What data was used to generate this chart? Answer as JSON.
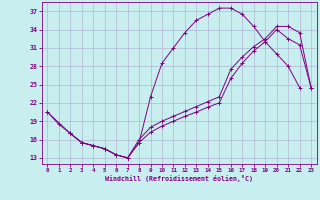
{
  "xlabel": "Windchill (Refroidissement éolien,°C)",
  "xlim": [
    -0.5,
    23.5
  ],
  "ylim": [
    12,
    38.5
  ],
  "xticks": [
    0,
    1,
    2,
    3,
    4,
    5,
    6,
    7,
    8,
    9,
    10,
    11,
    12,
    13,
    14,
    15,
    16,
    17,
    18,
    19,
    20,
    21,
    22,
    23
  ],
  "yticks": [
    13,
    16,
    19,
    22,
    25,
    28,
    31,
    34,
    37
  ],
  "background_color": "#c8eef0",
  "grid_color": "#aaaacc",
  "line_color": "#800080",
  "line1_x": [
    0,
    1,
    2,
    3,
    4,
    5,
    6,
    7,
    8,
    9,
    10,
    11,
    12,
    13,
    14,
    15,
    16,
    17,
    18,
    19,
    20,
    21,
    22
  ],
  "line1_y": [
    20.5,
    18.5,
    17.0,
    15.5,
    15.0,
    14.5,
    13.5,
    13.0,
    15.5,
    23.0,
    28.5,
    31.0,
    33.5,
    35.5,
    36.5,
    37.5,
    37.5,
    36.5,
    34.5,
    32.0,
    30.0,
    28.0,
    24.5
  ],
  "line2_x": [
    0,
    2,
    3,
    4,
    5,
    6,
    7,
    8,
    9,
    10,
    11,
    12,
    13,
    14,
    15,
    16,
    17,
    18,
    19,
    20,
    21,
    22,
    23
  ],
  "line2_y": [
    20.5,
    17.0,
    15.5,
    15.0,
    14.5,
    13.5,
    13.0,
    16.0,
    18.0,
    19.0,
    19.8,
    20.6,
    21.4,
    22.2,
    23.0,
    27.5,
    29.5,
    31.2,
    32.5,
    34.5,
    34.5,
    33.5,
    24.5
  ],
  "line3_x": [
    2,
    3,
    4,
    5,
    6,
    7,
    8,
    9,
    10,
    11,
    12,
    13,
    14,
    15,
    16,
    17,
    18,
    19,
    20,
    21,
    22,
    23
  ],
  "line3_y": [
    17.0,
    15.5,
    15.0,
    14.5,
    13.5,
    13.0,
    15.5,
    17.2,
    18.2,
    19.0,
    19.8,
    20.5,
    21.3,
    22.0,
    26.0,
    28.5,
    30.5,
    32.0,
    34.0,
    32.5,
    31.5,
    24.5
  ]
}
